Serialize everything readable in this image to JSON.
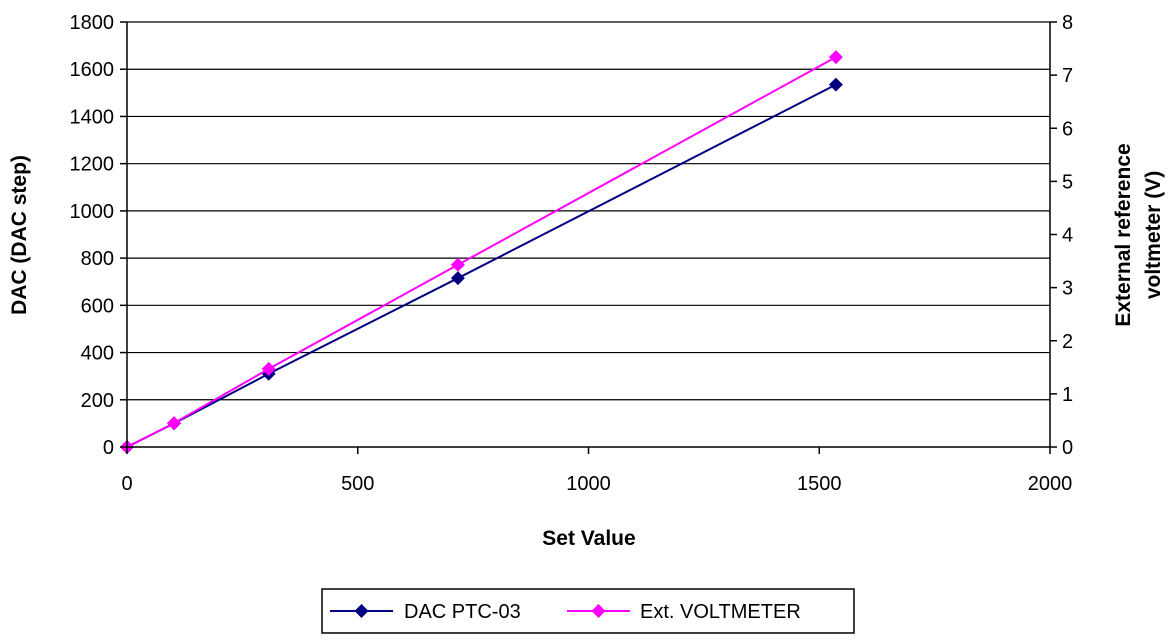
{
  "chart_data": {
    "type": "line",
    "xlabel": "Set Value",
    "ylabel": "DAC (DAC step)",
    "y2label_lines": [
      "External reference",
      "voltmeter (V)"
    ],
    "xlim": [
      0,
      2000
    ],
    "ylim": [
      0,
      1800
    ],
    "y2lim": [
      0,
      8
    ],
    "xticks": [
      0,
      500,
      1000,
      1500,
      2000
    ],
    "xtick_labels": [
      "0",
      "500",
      "1000",
      "1500",
      "2000"
    ],
    "yticks": [
      0,
      200,
      400,
      600,
      800,
      1000,
      1200,
      1400,
      1600,
      1800
    ],
    "ytick_labels": [
      "0",
      "200",
      "400",
      "600",
      "800",
      "1000",
      "1200",
      "1400",
      "1600",
      "1800"
    ],
    "y2ticks": [
      0,
      1,
      2,
      3,
      4,
      5,
      6,
      7,
      8
    ],
    "y2tick_labels": [
      "0",
      "1",
      "2",
      "3",
      "4",
      "5",
      "6",
      "7",
      "8"
    ],
    "grid": "horizontal",
    "legend_position": "bottom",
    "series": [
      {
        "name": "DAC PTC-03",
        "axis": "left",
        "color": "#000080",
        "marker": "diamond",
        "x": [
          0,
          102,
          307,
          717,
          1536
        ],
        "y": [
          0,
          100,
          310,
          715,
          1535
        ]
      },
      {
        "name": "Ext. VOLTMETER",
        "axis": "right",
        "color": "#ff00ff",
        "marker": "diamond",
        "x": [
          0,
          102,
          307,
          717,
          1536
        ],
        "y": [
          0,
          0.45,
          1.47,
          3.43,
          7.34
        ]
      }
    ]
  }
}
